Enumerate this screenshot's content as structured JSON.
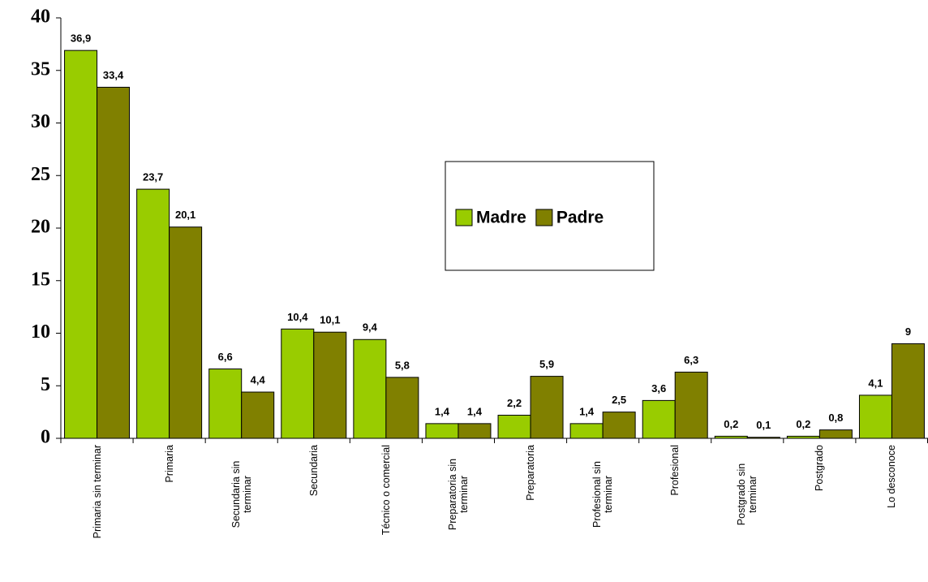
{
  "chart_data": {
    "type": "bar",
    "categories": [
      "Primaria sin terminar",
      "Primaria",
      "Secundaria sin terminar",
      "Secundaria",
      "Técnico o comercial",
      "Preparatoria sin terminar",
      "Preparatoria",
      "Profesional sin terminar",
      "Profesional",
      "Postgrado sin terminar",
      "Postgrado",
      "Lo desconoce"
    ],
    "series": [
      {
        "name": "Madre",
        "color": "#99cc00",
        "values": [
          36.9,
          23.7,
          6.6,
          10.4,
          9.4,
          1.4,
          2.2,
          1.4,
          3.6,
          0.2,
          0.2,
          4.1
        ],
        "value_labels": [
          "36,9",
          "23,7",
          "6,6",
          "10,4",
          "9,4",
          "1,4",
          "2,2",
          "1,4",
          "3,6",
          "0,2",
          "0,2",
          "4,1"
        ]
      },
      {
        "name": "Padre",
        "color": "#808000",
        "values": [
          33.4,
          20.1,
          4.4,
          10.1,
          5.8,
          1.4,
          5.9,
          2.5,
          6.3,
          0.1,
          0.8,
          9
        ],
        "value_labels": [
          "33,4",
          "20,1",
          "4,4",
          "10,1",
          "5,8",
          "1,4",
          "5,9",
          "2,5",
          "6,3",
          "0,1",
          "0,8",
          "9"
        ]
      }
    ],
    "ylim": [
      0,
      40
    ],
    "yticks": [
      0,
      5,
      10,
      15,
      20,
      25,
      30,
      35,
      40
    ],
    "grid": false,
    "legend": "center"
  }
}
